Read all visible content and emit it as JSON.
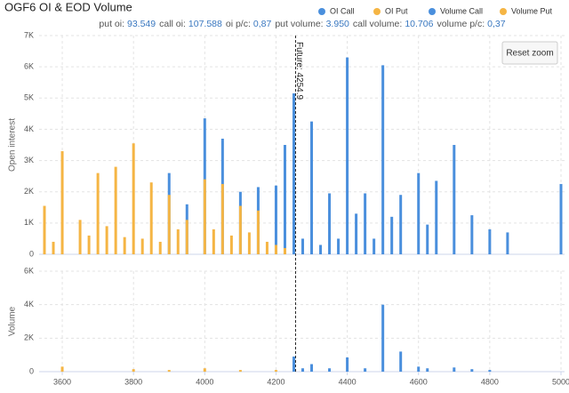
{
  "chart_data": [
    {
      "type": "bar",
      "title": "OGF6 OI & EOD Volume",
      "subtitle": [
        {
          "label": "put oi:",
          "value": "93.549"
        },
        {
          "label": "call oi:",
          "value": "107.588"
        },
        {
          "label": "oi p/c:",
          "value": "0,87"
        },
        {
          "label": "put volume:",
          "value": "3.950"
        },
        {
          "label": "call volume:",
          "value": "10.706"
        },
        {
          "label": "volume p/c:",
          "value": "0,37"
        }
      ],
      "y_label": "Open interest",
      "annotation": {
        "label": "Future: 4254.9",
        "x": 4254.9
      },
      "button": "Reset zoom",
      "xlim": [
        3535,
        5010
      ],
      "ylim": [
        0,
        7000
      ],
      "yticks": [
        0,
        {
          "value": 1000,
          "label": "1K"
        },
        {
          "value": 2000,
          "label": "2K"
        },
        {
          "value": 3000,
          "label": "3K"
        },
        {
          "value": 4000,
          "label": "4K"
        },
        {
          "value": 5000,
          "label": "5K"
        },
        {
          "value": 6000,
          "label": "6K"
        },
        {
          "value": 7000,
          "label": "7K"
        }
      ],
      "grid": true,
      "series": [
        {
          "name": "OI Call",
          "color": "#4a8fdd",
          "x": [
            3900,
            3950,
            4000,
            4050,
            4100,
            4150,
            4200,
            4225,
            4250,
            4275,
            4300,
            4325,
            4350,
            4375,
            4400,
            4425,
            4450,
            4475,
            4500,
            4525,
            4550,
            4600,
            4625,
            4650,
            4700,
            4750,
            4800,
            4850,
            5000
          ],
          "values": [
            2600,
            1600,
            4350,
            3700,
            2000,
            2150,
            2200,
            3500,
            5150,
            500,
            4250,
            300,
            1950,
            500,
            6300,
            1300,
            1950,
            500,
            6050,
            1200,
            1900,
            2600,
            950,
            2350,
            3500,
            1250,
            800,
            700,
            2250
          ]
        },
        {
          "name": "OI Put",
          "color": "#f5b544",
          "x": [
            3550,
            3575,
            3600,
            3650,
            3675,
            3700,
            3725,
            3750,
            3775,
            3800,
            3825,
            3850,
            3875,
            3900,
            3925,
            3950,
            4000,
            4025,
            4050,
            4075,
            4100,
            4125,
            4150,
            4175,
            4200,
            4225
          ],
          "values": [
            1550,
            400,
            3300,
            1100,
            600,
            2600,
            900,
            2800,
            550,
            3550,
            500,
            2300,
            400,
            1900,
            800,
            1100,
            2400,
            800,
            2250,
            600,
            1550,
            700,
            1400,
            400,
            300,
            200
          ]
        }
      ]
    },
    {
      "type": "bar",
      "y_label": "Volume",
      "xlim": [
        3535,
        5010
      ],
      "ylim": [
        0,
        6000
      ],
      "xticks": [
        3600,
        3800,
        4000,
        4200,
        4400,
        4600,
        4800,
        5000
      ],
      "yticks": [
        0,
        {
          "value": 2000,
          "label": "2K"
        },
        {
          "value": 4000,
          "label": "4K"
        },
        {
          "value": 6000,
          "label": "6K"
        }
      ],
      "grid": true,
      "series": [
        {
          "name": "Volume Call",
          "color": "#4a8fdd",
          "x": [
            4250,
            4275,
            4300,
            4350,
            4400,
            4450,
            4500,
            4550,
            4600,
            4625,
            4700,
            4750,
            4800
          ],
          "values": [
            900,
            200,
            450,
            200,
            850,
            200,
            4000,
            1200,
            300,
            200,
            250,
            150,
            100
          ]
        },
        {
          "name": "Volume Put",
          "color": "#f5b544",
          "x": [
            3600,
            3800,
            3900,
            4000,
            4100,
            4200
          ],
          "values": [
            300,
            150,
            100,
            200,
            100,
            100
          ]
        }
      ]
    }
  ]
}
